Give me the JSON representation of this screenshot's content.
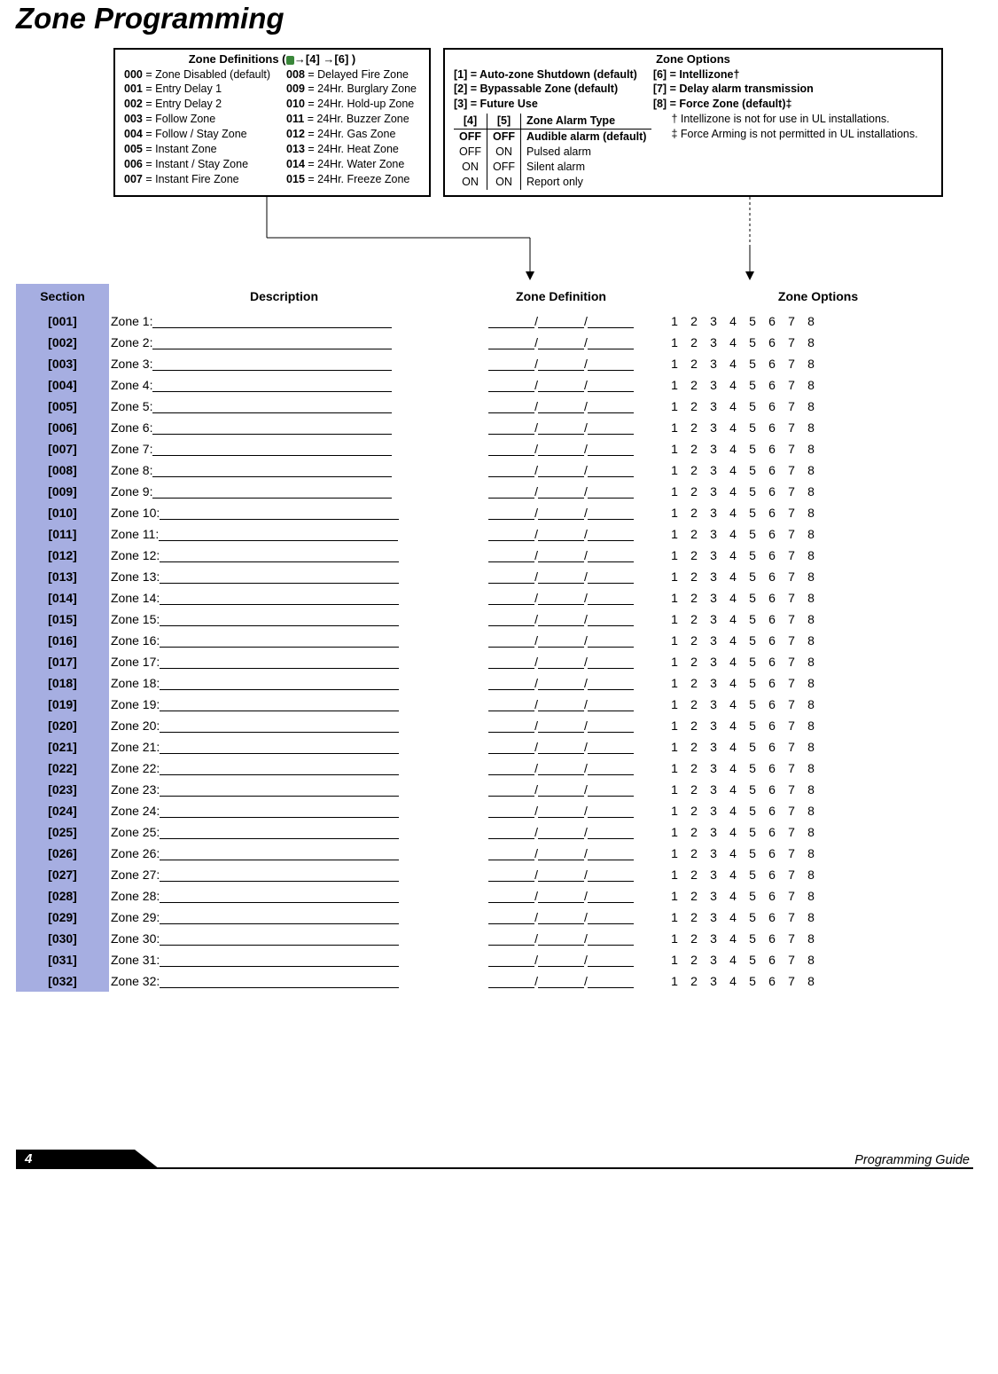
{
  "title": "Zone Programming",
  "defs": {
    "title": "Zone Definitions (",
    "title_suffix": "→[4] →[6] )",
    "left": [
      {
        "code": "000",
        "label": "= Zone Disabled (default)"
      },
      {
        "code": "001",
        "label": "= Entry Delay 1"
      },
      {
        "code": "002",
        "label": "= Entry Delay 2"
      },
      {
        "code": "003",
        "label": "= Follow Zone"
      },
      {
        "code": "004",
        "label": "= Follow / Stay Zone"
      },
      {
        "code": "005",
        "label": "= Instant Zone"
      },
      {
        "code": "006",
        "label": "= Instant / Stay Zone"
      },
      {
        "code": "007",
        "label": "= Instant Fire Zone"
      }
    ],
    "right": [
      {
        "code": "008",
        "label": "= Delayed Fire Zone"
      },
      {
        "code": "009",
        "label": "= 24Hr. Burglary Zone"
      },
      {
        "code": "010",
        "label": "= 24Hr. Hold-up Zone"
      },
      {
        "code": "011",
        "label": "= 24Hr. Buzzer Zone"
      },
      {
        "code": "012",
        "label": "= 24Hr. Gas Zone"
      },
      {
        "code": "013",
        "label": "= 24Hr. Heat Zone"
      },
      {
        "code": "014",
        "label": "= 24Hr. Water Zone"
      },
      {
        "code": "015",
        "label": "= 24Hr. Freeze Zone"
      }
    ]
  },
  "opts": {
    "title": "Zone Options",
    "left": [
      "[1] = Auto-zone Shutdown (default)",
      "[2] = Bypassable Zone (default)",
      "[3] = Future Use"
    ],
    "right": [
      "[6] = Intellizone†",
      "[7] = Delay alarm transmission",
      "[8] = Force Zone (default)‡"
    ],
    "alarm_header": {
      "c4": "[4]",
      "c5": "[5]",
      "desc": "Zone Alarm Type"
    },
    "alarm_rows": [
      {
        "a": "OFF",
        "b": "OFF",
        "d": "Audible alarm (default)",
        "bold": true
      },
      {
        "a": "OFF",
        "b": "ON",
        "d": "Pulsed alarm",
        "bold": false
      },
      {
        "a": "ON",
        "b": "OFF",
        "d": "Silent alarm",
        "bold": false
      },
      {
        "a": "ON",
        "b": "ON",
        "d": "Report only",
        "bold": false
      }
    ],
    "notes": [
      "† Intellizone is not for use in UL installations.",
      "‡ Force Arming is not permitted in UL installations."
    ]
  },
  "table": {
    "headers": {
      "section": "Section",
      "desc": "Description",
      "def": "Zone Definition",
      "opts": "Zone Options"
    },
    "opt_numbers": [
      "1",
      "2",
      "3",
      "4",
      "5",
      "6",
      "7",
      "8"
    ]
  },
  "footer": {
    "page": "4",
    "text": "Programming Guide"
  }
}
